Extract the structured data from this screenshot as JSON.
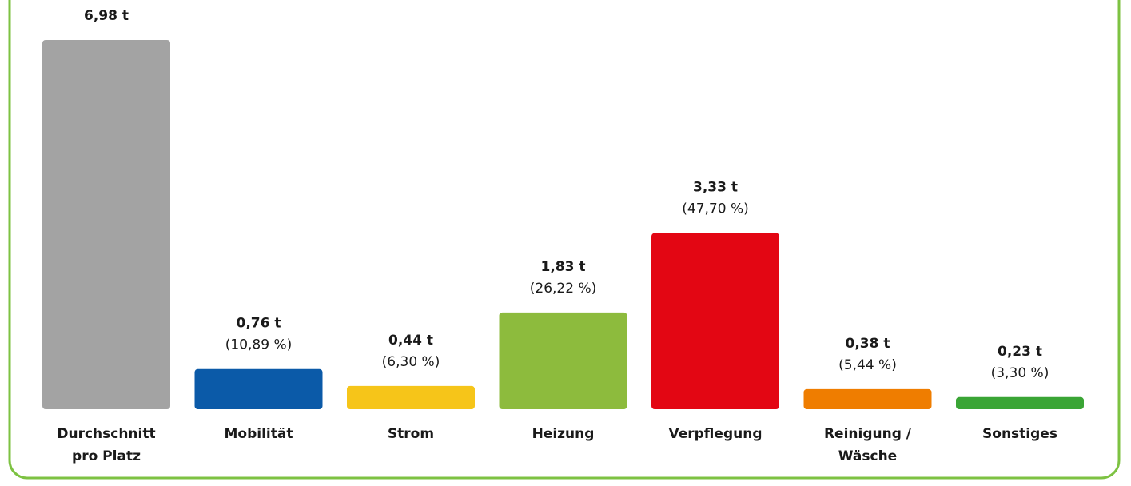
{
  "chart_data": {
    "type": "bar",
    "categories": [
      [
        "Durchschnitt",
        "pro Platz"
      ],
      [
        "Mobilität"
      ],
      [
        "Strom"
      ],
      [
        "Heizung"
      ],
      [
        "Verpflegung"
      ],
      [
        "Reinigung /",
        "Wäsche"
      ],
      [
        "Sonstiges"
      ]
    ],
    "values": [
      6.98,
      0.76,
      0.44,
      1.83,
      3.33,
      0.38,
      0.23
    ],
    "value_labels": [
      "6,98 t",
      "0,76 t",
      "0,44 t",
      "1,83 t",
      "3,33 t",
      "0,38 t",
      "0,23 t"
    ],
    "shares": [
      null,
      10.89,
      6.3,
      26.22,
      47.7,
      5.44,
      3.3
    ],
    "share_labels": [
      null,
      "(10,89 %)",
      "(6,30 %)",
      "(26,22 %)",
      "(47,70 %)",
      "(5,44 %)",
      "(3,30 %)"
    ],
    "colors": [
      "#a3a3a3",
      "#0b5aa8",
      "#f6c519",
      "#8dbb3d",
      "#e30613",
      "#ef7d00",
      "#3aa535"
    ]
  }
}
